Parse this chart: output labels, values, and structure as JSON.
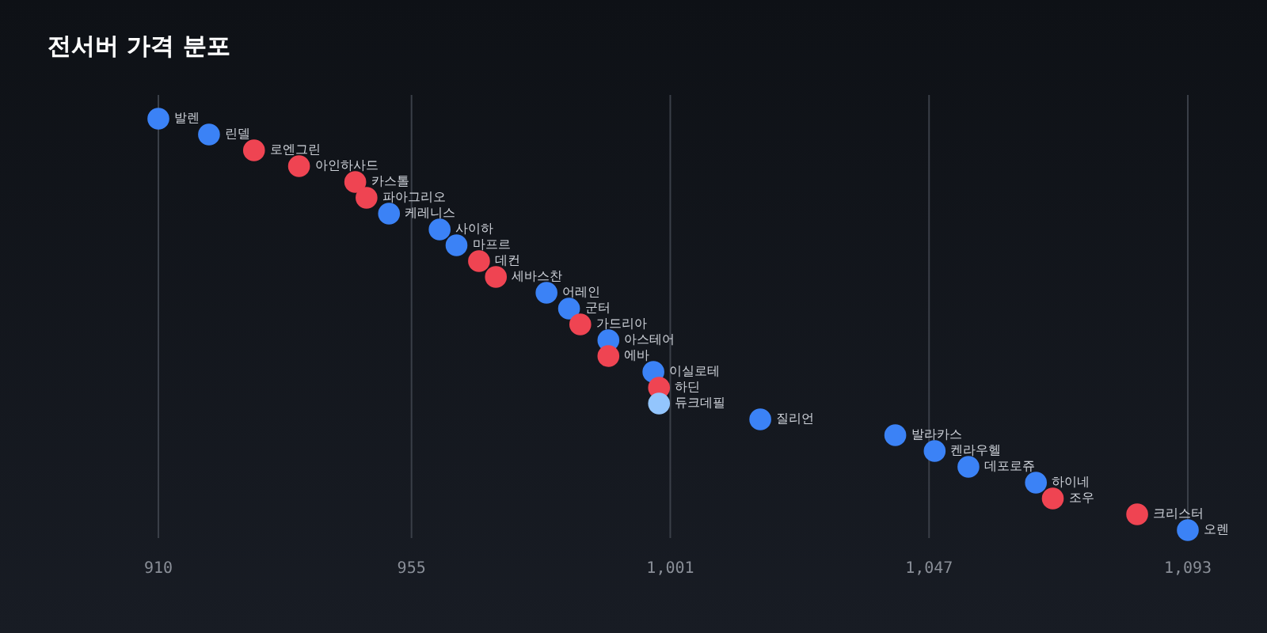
{
  "chart_data": {
    "type": "scatter",
    "title": "전서버 가격 분포",
    "orientation": "horizontal",
    "categories": [
      "발렌",
      "린델",
      "로엔그린",
      "아인하사드",
      "카스톨",
      "파아그리오",
      "케레니스",
      "사이하",
      "마프르",
      "데컨",
      "세바스찬",
      "어레인",
      "군터",
      "가드리아",
      "아스테어",
      "에바",
      "이실로테",
      "하딘",
      "듀크데필",
      "질리언",
      "발라카스",
      "켄라우헬",
      "데포로쥬",
      "하이네",
      "조우",
      "크리스터",
      "오렌"
    ],
    "values": [
      910,
      919,
      927,
      935,
      945,
      947,
      951,
      960,
      963,
      967,
      970,
      979,
      983,
      985,
      990,
      990,
      998,
      999,
      999,
      1017,
      1041,
      1048,
      1054,
      1066,
      1069,
      1084,
      1093
    ],
    "colors": [
      "#3b82f6",
      "#3b82f6",
      "#ef4452",
      "#ef4452",
      "#ef4452",
      "#ef4452",
      "#3b82f6",
      "#3b82f6",
      "#3b82f6",
      "#ef4452",
      "#ef4452",
      "#3b82f6",
      "#3b82f6",
      "#ef4452",
      "#3b82f6",
      "#ef4452",
      "#3b82f6",
      "#ef4452",
      "#93c5fd",
      "#3b82f6",
      "#3b82f6",
      "#3b82f6",
      "#3b82f6",
      "#3b82f6",
      "#ef4452",
      "#ef4452",
      "#3b82f6"
    ],
    "xlim": [
      910,
      1093
    ],
    "xticks": [
      910,
      955,
      {
        "value": 1001,
        "label": "1,001"
      },
      {
        "value": 1047,
        "label": "1,047"
      },
      {
        "value": 1093,
        "label": "1,093"
      }
    ],
    "grid": "x",
    "tick_labels": "x",
    "marker": "circle"
  }
}
